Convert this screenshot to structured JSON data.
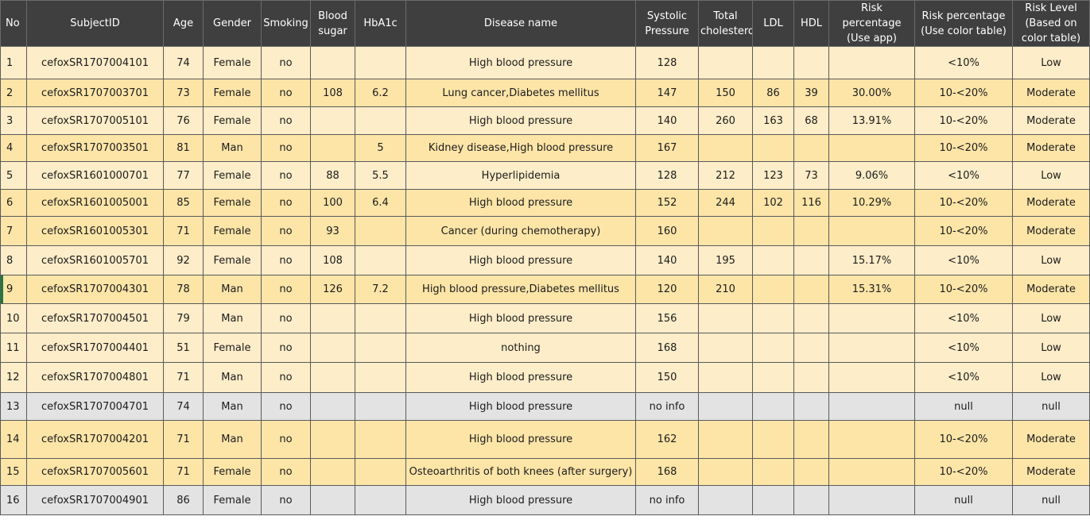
{
  "columns": [
    "No",
    "SubjectID",
    "Age",
    "Gender",
    "Smoking",
    "Blood sugar",
    "HbA1c",
    "Disease name",
    "Systolic Pressure",
    "Total cholesterol",
    "LDL",
    "HDL",
    "Risk percentage (Use app)",
    "Risk percentage (Use color table)",
    "Risk Level (Based on color table)"
  ],
  "rows": [
    {
      "no": "1",
      "subject_id": "cefoxSR1707004101",
      "age": "74",
      "gender": "Female",
      "smoking": "no",
      "blood_sugar": "",
      "hba1c": "",
      "disease": "High blood pressure",
      "systolic": "128",
      "total_chol": "",
      "ldl": "",
      "hdl": "",
      "risk_app": "",
      "risk_table": "<10%",
      "risk_level": "Low"
    },
    {
      "no": "2",
      "subject_id": "cefoxSR1707003701",
      "age": "73",
      "gender": "Female",
      "smoking": "no",
      "blood_sugar": "108",
      "hba1c": "6.2",
      "disease": "Lung cancer,Diabetes mellitus",
      "systolic": "147",
      "total_chol": "150",
      "ldl": "86",
      "hdl": "39",
      "risk_app": "30.00%",
      "risk_table": "10-<20%",
      "risk_level": "Moderate"
    },
    {
      "no": "3",
      "subject_id": "cefoxSR1707005101",
      "age": "76",
      "gender": "Female",
      "smoking": "no",
      "blood_sugar": "",
      "hba1c": "",
      "disease": "High blood pressure",
      "systolic": "140",
      "total_chol": "260",
      "ldl": "163",
      "hdl": "68",
      "risk_app": "13.91%",
      "risk_table": "10-<20%",
      "risk_level": "Moderate"
    },
    {
      "no": "4",
      "subject_id": "cefoxSR1707003501",
      "age": "81",
      "gender": "Man",
      "smoking": "no",
      "blood_sugar": "",
      "hba1c": "5",
      "disease": "Kidney disease,High blood pressure",
      "systolic": "167",
      "total_chol": "",
      "ldl": "",
      "hdl": "",
      "risk_app": "",
      "risk_table": "10-<20%",
      "risk_level": "Moderate"
    },
    {
      "no": "5",
      "subject_id": "cefoxSR1601000701",
      "age": "77",
      "gender": "Female",
      "smoking": "no",
      "blood_sugar": "88",
      "hba1c": "5.5",
      "disease": "Hyperlipidemia",
      "systolic": "128",
      "total_chol": "212",
      "ldl": "123",
      "hdl": "73",
      "risk_app": "9.06%",
      "risk_table": "<10%",
      "risk_level": "Low"
    },
    {
      "no": "6",
      "subject_id": "cefoxSR1601005001",
      "age": "85",
      "gender": "Female",
      "smoking": "no",
      "blood_sugar": "100",
      "hba1c": "6.4",
      "disease": "High blood pressure",
      "systolic": "152",
      "total_chol": "244",
      "ldl": "102",
      "hdl": "116",
      "risk_app": "10.29%",
      "risk_table": "10-<20%",
      "risk_level": "Moderate"
    },
    {
      "no": "7",
      "subject_id": "cefoxSR1601005301",
      "age": "71",
      "gender": "Female",
      "smoking": "no",
      "blood_sugar": "93",
      "hba1c": "",
      "disease": "Cancer (during chemotherapy)",
      "systolic": "160",
      "total_chol": "",
      "ldl": "",
      "hdl": "",
      "risk_app": "",
      "risk_table": "10-<20%",
      "risk_level": "Moderate"
    },
    {
      "no": "8",
      "subject_id": "cefoxSR1601005701",
      "age": "92",
      "gender": "Female",
      "smoking": "no",
      "blood_sugar": "108",
      "hba1c": "",
      "disease": "High blood pressure",
      "systolic": "140",
      "total_chol": "195",
      "ldl": "",
      "hdl": "",
      "risk_app": "15.17%",
      "risk_table": "<10%",
      "risk_level": "Low"
    },
    {
      "no": "9",
      "subject_id": "cefoxSR1707004301",
      "age": "78",
      "gender": "Man",
      "smoking": "no",
      "blood_sugar": "126",
      "hba1c": "7.2",
      "disease": "High blood pressure,Diabetes mellitus",
      "systolic": "120",
      "total_chol": "210",
      "ldl": "",
      "hdl": "",
      "risk_app": "15.31%",
      "risk_table": "10-<20%",
      "risk_level": "Moderate"
    },
    {
      "no": "10",
      "subject_id": "cefoxSR1707004501",
      "age": "79",
      "gender": "Man",
      "smoking": "no",
      "blood_sugar": "",
      "hba1c": "",
      "disease": "High blood pressure",
      "systolic": "156",
      "total_chol": "",
      "ldl": "",
      "hdl": "",
      "risk_app": "",
      "risk_table": "<10%",
      "risk_level": "Low"
    },
    {
      "no": "11",
      "subject_id": "cefoxSR1707004401",
      "age": "51",
      "gender": "Female",
      "smoking": "no",
      "blood_sugar": "",
      "hba1c": "",
      "disease": "nothing",
      "systolic": "168",
      "total_chol": "",
      "ldl": "",
      "hdl": "",
      "risk_app": "",
      "risk_table": "<10%",
      "risk_level": "Low"
    },
    {
      "no": "12",
      "subject_id": "cefoxSR1707004801",
      "age": "71",
      "gender": "Man",
      "smoking": "no",
      "blood_sugar": "",
      "hba1c": "",
      "disease": "High blood pressure",
      "systolic": "150",
      "total_chol": "",
      "ldl": "",
      "hdl": "",
      "risk_app": "",
      "risk_table": "<10%",
      "risk_level": "Low"
    },
    {
      "no": "13",
      "subject_id": "cefoxSR1707004701",
      "age": "74",
      "gender": "Man",
      "smoking": "no",
      "blood_sugar": "",
      "hba1c": "",
      "disease": "High blood pressure",
      "systolic": "no info",
      "total_chol": "",
      "ldl": "",
      "hdl": "",
      "risk_app": "",
      "risk_table": "null",
      "risk_level": "null"
    },
    {
      "no": "14",
      "subject_id": "cefoxSR1707004201",
      "age": "71",
      "gender": "Man",
      "smoking": "no",
      "blood_sugar": "",
      "hba1c": "",
      "disease": "High blood pressure",
      "systolic": "162",
      "total_chol": "",
      "ldl": "",
      "hdl": "",
      "risk_app": "",
      "risk_table": "10-<20%",
      "risk_level": "Moderate"
    },
    {
      "no": "15",
      "subject_id": "cefoxSR1707005601",
      "age": "71",
      "gender": "Female",
      "smoking": "no",
      "blood_sugar": "",
      "hba1c": "",
      "disease": "Osteoarthritis of both knees (after surgery)",
      "systolic": "168",
      "total_chol": "",
      "ldl": "",
      "hdl": "",
      "risk_app": "",
      "risk_table": "10-<20%",
      "risk_level": "Moderate"
    },
    {
      "no": "16",
      "subject_id": "cefoxSR1707004901",
      "age": "86",
      "gender": "Female",
      "smoking": "no",
      "blood_sugar": "",
      "hba1c": "",
      "disease": "High blood pressure",
      "systolic": "no info",
      "total_chol": "",
      "ldl": "",
      "hdl": "",
      "risk_app": "",
      "risk_table": "null",
      "risk_level": "null"
    }
  ],
  "colors": {
    "header_bg": "#3f3f3f",
    "header_text": "#ffffff",
    "row_light": "#fdedc9",
    "row_dark": "#fde5a8",
    "row_null": "#e3e3e3",
    "grid_line": "#5a5a5a",
    "active_row_marker": "#1e7a3a"
  }
}
